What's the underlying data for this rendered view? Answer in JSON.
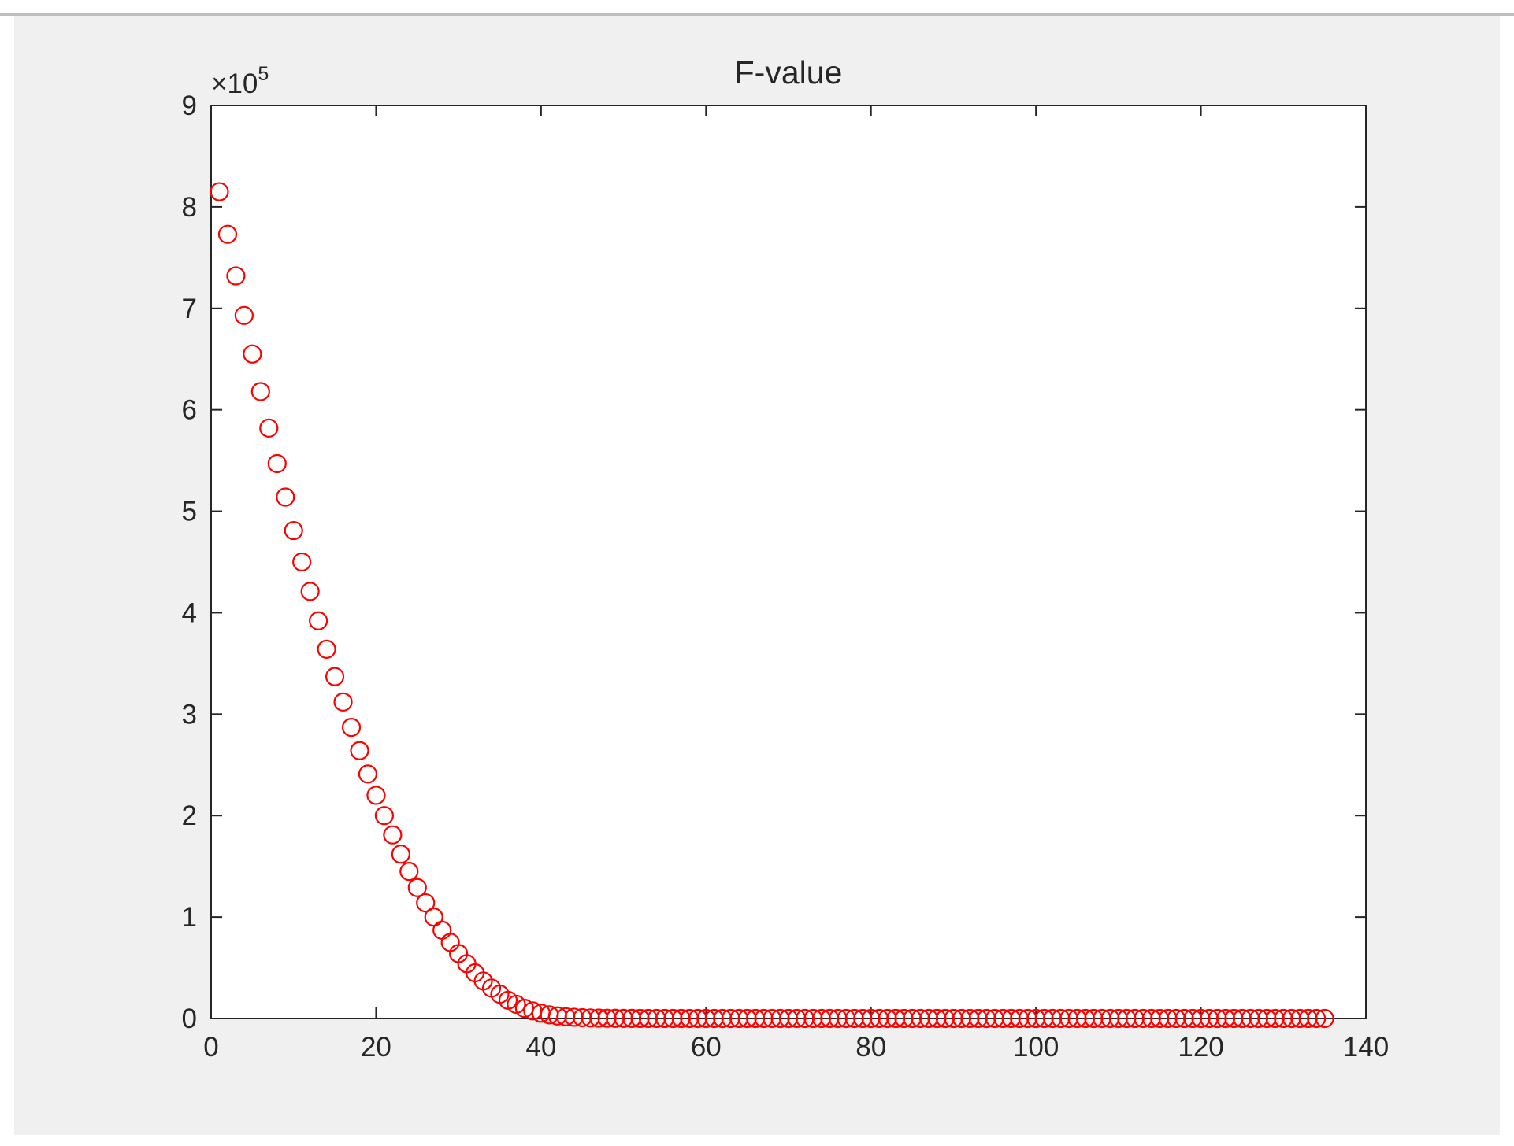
{
  "chart_data": {
    "type": "scatter",
    "title": "F-value",
    "xlabel": "",
    "ylabel": "",
    "xlim": [
      0,
      140
    ],
    "ylim": [
      0,
      900000
    ],
    "x_ticks": [
      0,
      20,
      40,
      60,
      80,
      100,
      120,
      140
    ],
    "y_ticks": [
      0,
      100000,
      200000,
      300000,
      400000,
      500000,
      600000,
      700000,
      800000,
      900000
    ],
    "x_tick_labels": [
      "0",
      "20",
      "40",
      "60",
      "80",
      "100",
      "120",
      "140"
    ],
    "y_tick_labels": [
      "0",
      "1",
      "2",
      "3",
      "4",
      "5",
      "6",
      "7",
      "8",
      "9"
    ],
    "y_exponent_prefix": "×10",
    "y_exponent_power": "5",
    "grid": false,
    "marker": "open-circle",
    "marker_color": "#ff0000",
    "series": [
      {
        "x": [
          1,
          2,
          3,
          4,
          5,
          6,
          7,
          8,
          9,
          10,
          11,
          12,
          13,
          14,
          15,
          16,
          17,
          18,
          19,
          20,
          21,
          22,
          23,
          24,
          25,
          26,
          27,
          28,
          29,
          30,
          31,
          32,
          33,
          34,
          35,
          36,
          37,
          38,
          39,
          40,
          41,
          42,
          43,
          44,
          45,
          46,
          47,
          48,
          49,
          50,
          51,
          52,
          53,
          54,
          55,
          56,
          57,
          58,
          59,
          60,
          61,
          62,
          63,
          64,
          65,
          66,
          67,
          68,
          69,
          70,
          71,
          72,
          73,
          74,
          75,
          76,
          77,
          78,
          79,
          80,
          81,
          82,
          83,
          84,
          85,
          86,
          87,
          88,
          89,
          90,
          91,
          92,
          93,
          94,
          95,
          96,
          97,
          98,
          99,
          100,
          101,
          102,
          103,
          104,
          105,
          106,
          107,
          108,
          109,
          110,
          111,
          112,
          113,
          114,
          115,
          116,
          117,
          118,
          119,
          120,
          121,
          122,
          123,
          124,
          125,
          126,
          127,
          128,
          129,
          130,
          131,
          132,
          133,
          134,
          135
        ],
        "y": [
          815000,
          773000,
          732000,
          693000,
          655000,
          618000,
          582000,
          547000,
          514000,
          481000,
          450000,
          421000,
          392000,
          364000,
          337000,
          312000,
          287000,
          264000,
          241000,
          220000,
          200000,
          181000,
          162000,
          145000,
          129000,
          114000,
          100000,
          87000,
          75000,
          64000,
          54000,
          45000,
          37000,
          30000,
          24000,
          18000,
          14000,
          10000,
          7500,
          5200,
          3600,
          2500,
          1700,
          1200,
          800,
          550,
          380,
          260,
          180,
          120,
          80,
          55,
          40,
          30,
          20,
          15,
          10,
          8,
          6,
          5,
          4,
          3,
          2,
          2,
          1,
          1,
          1,
          1,
          1,
          1,
          1,
          1,
          1,
          1,
          1,
          1,
          1,
          1,
          1,
          1,
          1,
          1,
          1,
          1,
          1,
          1,
          1,
          1,
          1,
          1,
          1,
          1,
          1,
          1,
          1,
          1,
          1,
          1,
          1,
          1,
          1,
          1,
          1,
          1,
          1,
          1,
          1,
          1,
          1,
          1,
          1,
          1,
          1,
          1,
          1,
          1,
          1,
          1,
          1,
          1,
          1,
          1,
          1,
          1,
          1,
          1,
          1,
          1,
          1,
          1,
          1,
          1,
          1,
          1,
          1
        ]
      }
    ],
    "colors": {
      "figure_background": "#f0f0f0",
      "axes_background": "#ffffff",
      "axes_color": "#262626"
    }
  }
}
